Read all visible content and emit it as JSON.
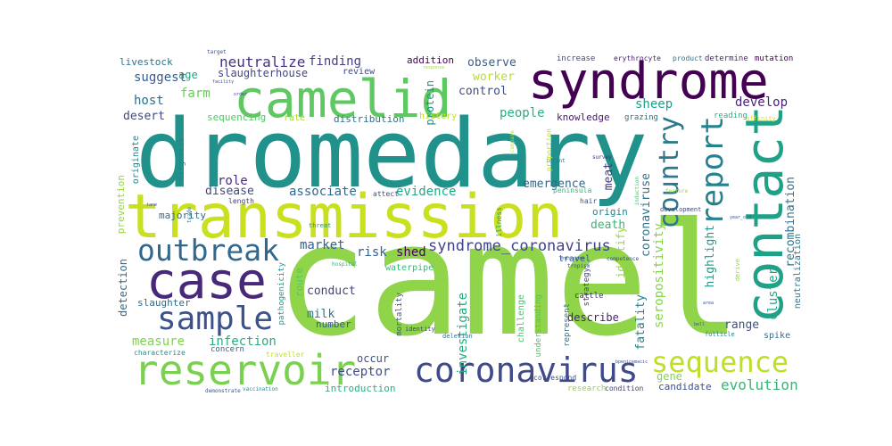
{
  "words": [
    {
      "text": "camel",
      "color": "#8fd449"
    },
    {
      "text": "dromedary",
      "color": "#21918c"
    },
    {
      "text": "transmission",
      "color": "#c8e020"
    },
    {
      "text": "syndrome",
      "color": "#440154"
    },
    {
      "text": "camelid",
      "color": "#5ec962"
    },
    {
      "text": "contact",
      "color": "#1fa187"
    },
    {
      "text": "case",
      "color": "#482878"
    },
    {
      "text": "reservoir",
      "color": "#7ad151"
    },
    {
      "text": "sample",
      "color": "#3b528b"
    },
    {
      "text": "coronavirus",
      "color": "#3e4a89"
    },
    {
      "text": "outbreak",
      "color": "#31688e"
    },
    {
      "text": "sequence",
      "color": "#bddf26"
    },
    {
      "text": "report",
      "color": "#26828e"
    },
    {
      "text": "country",
      "color": "#2a788e"
    },
    {
      "text": "syndrome_coronavirus",
      "color": "#414487"
    },
    {
      "text": "evolution",
      "color": "#35b779"
    },
    {
      "text": "neutralize",
      "color": "#46327e"
    },
    {
      "text": "finding",
      "color": "#433e85"
    },
    {
      "text": "slaughterhouse",
      "color": "#404688"
    },
    {
      "text": "livestock",
      "color": "#2c728e"
    },
    {
      "text": "suggest",
      "color": "#365c8d"
    },
    {
      "text": "age",
      "color": "#20a486"
    },
    {
      "text": "farm",
      "color": "#6ccd5a"
    },
    {
      "text": "host",
      "color": "#2d708e"
    },
    {
      "text": "desert",
      "color": "#3e4989"
    },
    {
      "text": "role",
      "color": "#472d7b"
    },
    {
      "text": "disease",
      "color": "#3f4788"
    },
    {
      "text": "associate",
      "color": "#31688e"
    },
    {
      "text": "evidence",
      "color": "#22a884"
    },
    {
      "text": "market",
      "color": "#34618d"
    },
    {
      "text": "risk",
      "color": "#33638d"
    },
    {
      "text": "shed",
      "color": "#450457"
    },
    {
      "text": "conduct",
      "color": "#414487"
    },
    {
      "text": "milk",
      "color": "#2a768e"
    },
    {
      "text": "measure",
      "color": "#7fd34e"
    },
    {
      "text": "infection",
      "color": "#28ae80"
    },
    {
      "text": "occur",
      "color": "#3b528b"
    },
    {
      "text": "receptor",
      "color": "#3d4d8a"
    },
    {
      "text": "investigate",
      "color": "#25ab82"
    },
    {
      "text": "people",
      "color": "#29af7f"
    },
    {
      "text": "control",
      "color": "#3e4c8a"
    },
    {
      "text": "observe",
      "color": "#365d8d"
    },
    {
      "text": "worker",
      "color": "#b5de2b"
    },
    {
      "text": "protein",
      "color": "#218e8d"
    },
    {
      "text": "addition",
      "color": "#440154"
    },
    {
      "text": "sheep",
      "color": "#1f9e89"
    },
    {
      "text": "develop",
      "color": "#482576"
    },
    {
      "text": "knowledge",
      "color": "#481a6c"
    },
    {
      "text": "emergence",
      "color": "#30698e"
    },
    {
      "text": "coronaviruse",
      "color": "#2c728e"
    },
    {
      "text": "meat",
      "color": "#443983"
    },
    {
      "text": "death",
      "color": "#35b779"
    },
    {
      "text": "identify",
      "color": "#9bd93c"
    },
    {
      "text": "seropositivity",
      "color": "#86d549"
    },
    {
      "text": "fatality",
      "color": "#26818e"
    },
    {
      "text": "cluster",
      "color": "#22a785"
    },
    {
      "text": "recombination",
      "color": "#2c738e"
    },
    {
      "text": "highlight",
      "color": "#1f998a"
    },
    {
      "text": "range",
      "color": "#3a548c"
    },
    {
      "text": "describe",
      "color": "#481f70"
    },
    {
      "text": "gene",
      "color": "#84d44b"
    },
    {
      "text": "candidate",
      "color": "#3c508b"
    },
    {
      "text": "detection",
      "color": "#2f6b8e"
    },
    {
      "text": "slaughter",
      "color": "#2e6e8e"
    },
    {
      "text": "number",
      "color": "#355f8d"
    },
    {
      "text": "introduction",
      "color": "#2ab07f"
    },
    {
      "text": "distribution",
      "color": "#2d718e"
    },
    {
      "text": "sequencing",
      "color": "#56c667"
    },
    {
      "text": "rate",
      "color": "#a5db36"
    },
    {
      "text": "review",
      "color": "#3f4889"
    },
    {
      "text": "origin",
      "color": "#25858e"
    },
    {
      "text": "route",
      "color": "#58c765"
    },
    {
      "text": "waterpipe",
      "color": "#38b977"
    },
    {
      "text": "cattle",
      "color": "#472e7c"
    },
    {
      "text": "travel",
      "color": "#34608d"
    },
    {
      "text": "spike",
      "color": "#2e6f8e"
    },
    {
      "text": "prevention",
      "color": "#95d840"
    },
    {
      "text": "originate",
      "color": "#26828e"
    },
    {
      "text": "majority",
      "color": "#2f6c8e"
    },
    {
      "text": "history",
      "color": "#c2df23"
    },
    {
      "text": "grazing",
      "color": "#2c718e"
    },
    {
      "text": "reading",
      "color": "#2ab07f"
    },
    {
      "text": "pathogenicity",
      "color": "#1f9a8a"
    },
    {
      "text": "mortality",
      "color": "#3a548c"
    },
    {
      "text": "challenge",
      "color": "#4ac16d"
    },
    {
      "text": "represent",
      "color": "#2e6e8e"
    },
    {
      "text": "strategy",
      "color": "#404688"
    },
    {
      "text": "understanding",
      "color": "#52c569"
    },
    {
      "text": "neutralization",
      "color": "#2a778e"
    },
    {
      "text": "increase",
      "color": "#3f4788"
    },
    {
      "text": "erythrocyte",
      "color": "#482475"
    },
    {
      "text": "product",
      "color": "#2c728e"
    },
    {
      "text": "determine",
      "color": "#482677"
    },
    {
      "text": "mutation",
      "color": "#440154"
    },
    {
      "text": "diagnosis",
      "color": "#26828e"
    },
    {
      "text": "length",
      "color": "#443b84"
    },
    {
      "text": "attect",
      "color": "#3e4c8a"
    },
    {
      "text": "illness",
      "color": "#1fa088"
    },
    {
      "text": "peninsula",
      "color": "#35b779"
    },
    {
      "text": "hair",
      "color": "#3b528b"
    },
    {
      "text": "correspond",
      "color": "#3b528b"
    },
    {
      "text": "research",
      "color": "#8fd744"
    },
    {
      "text": "condition",
      "color": "#453781"
    },
    {
      "text": "deletion",
      "color": "#2b748e"
    },
    {
      "text": "identity",
      "color": "#404588"
    },
    {
      "text": "traveller",
      "color": "#c0df25"
    },
    {
      "text": "concern",
      "color": "#34608d"
    },
    {
      "text": "characterize",
      "color": "#21908d"
    },
    {
      "text": "demonstrate",
      "color": "#38588c"
    },
    {
      "text": "vaccination",
      "color": "#23898e"
    },
    {
      "text": "threat",
      "color": "#1f958b"
    },
    {
      "text": "hospital",
      "color": "#2fb47c"
    },
    {
      "text": "tropism",
      "color": "#3b528b"
    },
    {
      "text": "competence",
      "color": "#3b528b"
    },
    {
      "text": "follicle",
      "color": "#25848e"
    },
    {
      "text": "infant",
      "color": "#2a788e"
    },
    {
      "text": "survey",
      "color": "#482878"
    },
    {
      "text": "compare",
      "color": "#b8de29"
    },
    {
      "text": "proportion",
      "color": "#b5de2b"
    },
    {
      "text": "induction",
      "color": "#48c16e"
    },
    {
      "text": "development",
      "color": "#3f4889"
    },
    {
      "text": "derive",
      "color": "#8fd744"
    },
    {
      "text": "affinity",
      "color": "#e0e318"
    },
    {
      "text": "target",
      "color": "#3b528b"
    },
    {
      "text": "facility",
      "color": "#3b528b"
    },
    {
      "text": "order",
      "color": "#3b528b"
    },
    {
      "text": "response",
      "color": "#a8db34"
    },
    {
      "text": "trade",
      "color": "#2a788e"
    },
    {
      "text": "feature",
      "color": "#a0da39"
    },
    {
      "text": "year_old",
      "color": "#3b528b"
    },
    {
      "text": "area",
      "color": "#3b528b"
    },
    {
      "text": "bell",
      "color": "#3b528b"
    },
    {
      "text": "bpenicemacic",
      "color": "#3b528b"
    },
    {
      "text": "tane",
      "color": "#3b528b"
    },
    {
      "text": "enisconse",
      "color": "#3b528b"
    }
  ]
}
